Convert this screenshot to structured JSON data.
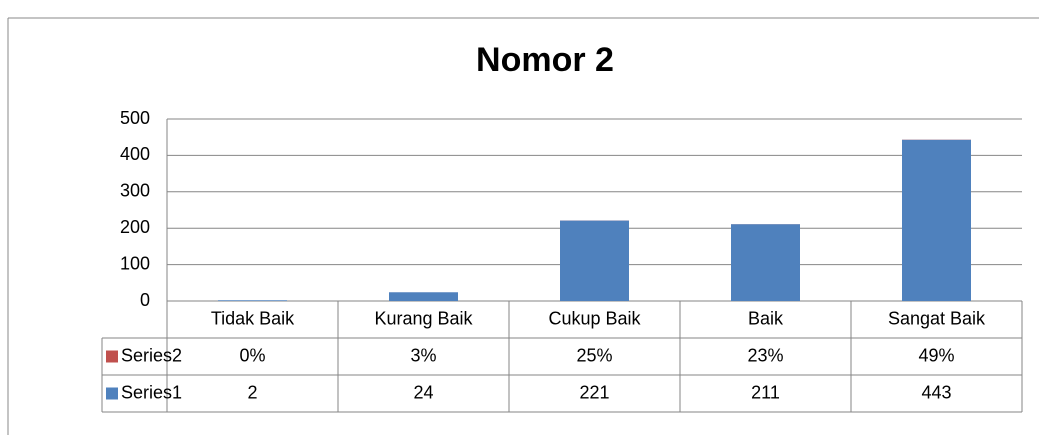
{
  "chart_data": {
    "type": "bar",
    "stacked": true,
    "title": "Nomor 2",
    "categories": [
      "Tidak Baik",
      "Kurang Baik",
      "Cukup Baik",
      "Baik",
      "Sangat Baik"
    ],
    "series": [
      {
        "name": "Series1",
        "color": "#4f81bd",
        "values": [
          2,
          24,
          221,
          211,
          443
        ]
      },
      {
        "name": "Series2",
        "color": "#c0504d",
        "values": [
          0,
          0.03,
          0.25,
          0.23,
          0.49
        ],
        "value_labels": [
          "0%",
          "3%",
          "25%",
          "23%",
          "49%"
        ]
      }
    ],
    "ylim": [
      0,
      500
    ],
    "yticks": [
      0,
      100,
      200,
      300,
      400,
      500
    ],
    "grid": true,
    "data_table": true
  }
}
